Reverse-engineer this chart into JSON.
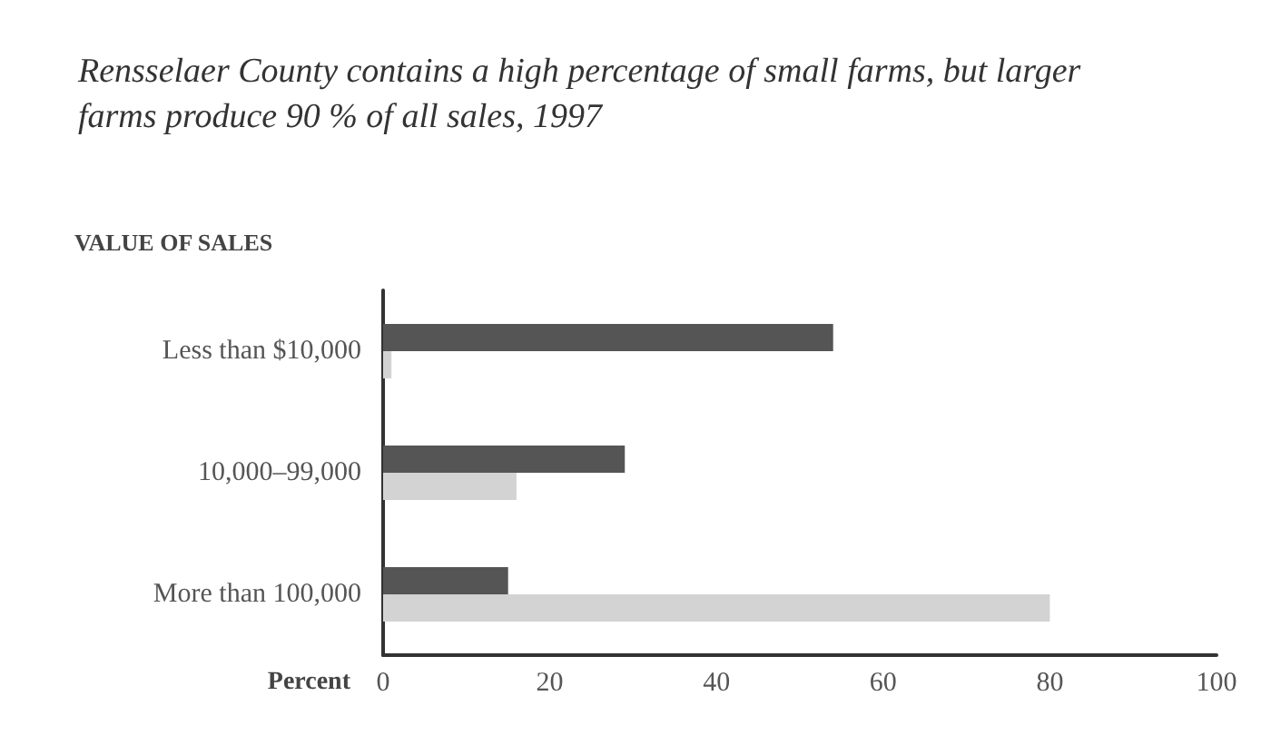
{
  "chart_data": {
    "type": "bar",
    "orientation": "horizontal",
    "title": "Rensselaer County contains a high percentage of small farms, but larger farms produce 90 % of all sales, 1997",
    "ylabel": "VALUE OF SALES",
    "xlabel": "Percent",
    "categories": [
      "Less than $10,000",
      "10,000–99,000",
      "More than 100,000"
    ],
    "series": [
      {
        "color": "#555555",
        "values": [
          54,
          29,
          15
        ]
      },
      {
        "color": "#d3d3d3",
        "values": [
          1,
          16,
          80
        ]
      }
    ],
    "xlim": [
      0,
      100
    ],
    "xticks": [
      0,
      20,
      40,
      60,
      80,
      100
    ],
    "grid": false
  }
}
